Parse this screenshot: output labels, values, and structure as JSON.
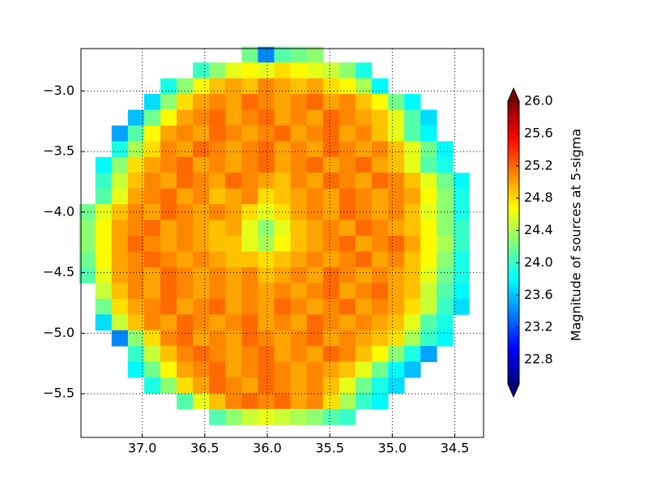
{
  "chart_data": {
    "type": "heatmap",
    "colorbar_label": "Magnitude of sources at 5-sigma",
    "colormap": "jet",
    "clim": [
      22.5,
      26.0
    ],
    "colorbar_extend": "both",
    "grid": true,
    "xlim": [
      37.49,
      34.27
    ],
    "ylim": [
      -5.86,
      -2.65
    ],
    "xticks": [
      {
        "value": 37,
        "label": "37.0"
      },
      {
        "value": 36.5,
        "label": "36.5"
      },
      {
        "value": 36,
        "label": "36.0"
      },
      {
        "value": 35.5,
        "label": "35.5"
      },
      {
        "value": 35,
        "label": "35.0"
      },
      {
        "value": 34.5,
        "label": "34.5"
      }
    ],
    "yticks": [
      {
        "value": -3,
        "label": "−3.0"
      },
      {
        "value": -3.5,
        "label": "−3.5"
      },
      {
        "value": -4,
        "label": "−4.0"
      },
      {
        "value": -4.5,
        "label": "−4.5"
      },
      {
        "value": -5,
        "label": "−5.0"
      },
      {
        "value": -5.5,
        "label": "−5.5"
      }
    ],
    "colorbar_ticks": [
      22.8,
      23.2,
      23.6,
      {
        "value": 24,
        "label": "24.0"
      },
      24.4,
      24.8,
      25.2,
      25.6,
      {
        "value": 26,
        "label": "26.0"
      }
    ],
    "x": [
      37.44,
      37.31,
      37.18,
      37.05,
      36.92,
      36.79,
      36.66,
      36.53,
      36.4,
      36.27,
      36.14,
      36.01,
      35.88,
      35.75,
      35.62,
      35.49,
      35.36,
      35.23,
      35.1,
      34.97,
      34.84,
      34.71,
      34.58,
      34.45
    ],
    "y": [
      -2.7,
      -2.83,
      -2.96,
      -3.09,
      -3.22,
      -3.35,
      -3.48,
      -3.61,
      -3.74,
      -3.87,
      -4.0,
      -4.13,
      -4.26,
      -4.39,
      -4.52,
      -4.65,
      -4.78,
      -4.91,
      -5.04,
      -5.17,
      -5.3,
      -5.43,
      -5.56,
      -5.69
    ],
    "z": [
      [
        null,
        null,
        null,
        null,
        null,
        null,
        null,
        null,
        null,
        null,
        24.2,
        23.4,
        24.1,
        24.2,
        24.3,
        null,
        null,
        null,
        null,
        null,
        null,
        null,
        null,
        null
      ],
      [
        null,
        null,
        null,
        null,
        null,
        null,
        null,
        24.0,
        24.3,
        24.6,
        24.7,
        24.6,
        24.8,
        24.7,
        24.6,
        24.5,
        24.3,
        23.9,
        null,
        null,
        null,
        null,
        null,
        null
      ],
      [
        null,
        null,
        null,
        null,
        null,
        23.9,
        24.3,
        24.7,
        24.9,
        25.0,
        24.9,
        25.1,
        25.0,
        24.9,
        25.0,
        24.8,
        24.7,
        24.4,
        23.8,
        null,
        null,
        null,
        null,
        null
      ],
      [
        null,
        null,
        null,
        null,
        23.7,
        24.3,
        24.8,
        25.0,
        25.1,
        25.0,
        25.2,
        25.1,
        25.0,
        25.1,
        25.2,
        25.0,
        25.1,
        24.9,
        24.7,
        24.2,
        23.8,
        null,
        null,
        null
      ],
      [
        null,
        null,
        null,
        23.6,
        24.2,
        24.7,
        25.0,
        25.1,
        25.2,
        25.0,
        25.1,
        25.2,
        25.0,
        25.1,
        25.0,
        25.2,
        25.1,
        25.0,
        24.9,
        24.6,
        24.1,
        23.7,
        null,
        null
      ],
      [
        null,
        null,
        23.5,
        24.1,
        24.7,
        25.0,
        25.1,
        25.0,
        25.2,
        25.1,
        25.0,
        25.1,
        25.2,
        25.0,
        25.1,
        25.2,
        25.0,
        25.1,
        24.9,
        24.6,
        24.1,
        23.8,
        null,
        null
      ],
      [
        null,
        null,
        23.9,
        24.4,
        24.8,
        25.1,
        25.0,
        25.2,
        25.1,
        25.0,
        25.1,
        25.2,
        25.0,
        25.1,
        25.0,
        25.2,
        25.1,
        25.0,
        25.1,
        24.9,
        24.6,
        24.2,
        23.8,
        null
      ],
      [
        null,
        23.8,
        24.3,
        24.8,
        25.0,
        25.1,
        25.2,
        25.0,
        25.1,
        25.0,
        25.1,
        25.2,
        25.0,
        25.1,
        25.2,
        25.0,
        25.1,
        25.2,
        25.0,
        24.9,
        24.6,
        24.1,
        23.9,
        null
      ],
      [
        null,
        24.0,
        24.5,
        24.9,
        25.1,
        25.0,
        25.2,
        25.1,
        25.0,
        25.2,
        25.1,
        25.0,
        24.9,
        25.1,
        25.0,
        25.2,
        25.1,
        25.0,
        25.2,
        25.1,
        24.9,
        24.6,
        24.2,
        23.8
      ],
      [
        null,
        24.1,
        24.6,
        25.0,
        25.1,
        25.2,
        25.0,
        25.1,
        24.9,
        25.0,
        25.1,
        24.8,
        24.9,
        25.0,
        25.1,
        25.0,
        25.2,
        25.1,
        25.0,
        25.1,
        25.0,
        24.7,
        24.3,
        23.9
      ],
      [
        24.2,
        24.6,
        24.9,
        25.1,
        25.0,
        25.2,
        25.1,
        25.0,
        25.1,
        25.0,
        24.8,
        24.6,
        24.8,
        25.0,
        25.1,
        25.0,
        25.2,
        25.1,
        25.0,
        25.1,
        24.9,
        24.6,
        24.3,
        23.9
      ],
      [
        24.3,
        24.7,
        25.0,
        25.1,
        25.2,
        25.0,
        25.1,
        25.0,
        24.9,
        25.0,
        24.6,
        24.3,
        24.6,
        24.9,
        25.0,
        25.1,
        25.0,
        25.2,
        25.1,
        25.0,
        24.9,
        24.7,
        24.3,
        24.0
      ],
      [
        24.3,
        24.7,
        25.0,
        25.2,
        25.1,
        25.0,
        25.1,
        25.0,
        24.9,
        24.9,
        24.6,
        24.4,
        24.7,
        24.9,
        25.0,
        25.1,
        25.2,
        25.0,
        25.1,
        25.2,
        25.0,
        24.7,
        24.4,
        24.0
      ],
      [
        24.2,
        24.7,
        25.0,
        25.1,
        25.2,
        25.1,
        25.0,
        25.1,
        25.0,
        24.9,
        24.9,
        24.8,
        24.9,
        25.0,
        25.1,
        25.0,
        25.1,
        25.2,
        25.0,
        25.1,
        24.9,
        24.7,
        24.3,
        23.9
      ],
      [
        24.1,
        24.6,
        25.0,
        25.1,
        25.0,
        25.2,
        25.1,
        25.0,
        25.1,
        25.0,
        25.1,
        24.9,
        25.0,
        25.1,
        25.0,
        25.2,
        25.1,
        25.0,
        25.1,
        25.0,
        24.9,
        24.6,
        24.2,
        23.9
      ],
      [
        null,
        24.5,
        24.9,
        25.1,
        25.0,
        25.2,
        25.1,
        25.0,
        25.1,
        25.0,
        25.1,
        25.0,
        25.1,
        25.0,
        25.1,
        25.2,
        25.0,
        25.1,
        25.2,
        25.0,
        24.9,
        24.5,
        24.1,
        23.8
      ],
      [
        null,
        24.2,
        24.8,
        25.0,
        25.1,
        25.2,
        25.0,
        25.1,
        25.2,
        25.0,
        25.1,
        25.0,
        25.2,
        25.1,
        25.0,
        25.1,
        25.2,
        25.0,
        25.1,
        25.0,
        24.8,
        24.5,
        24.0,
        23.7
      ],
      [
        null,
        23.7,
        24.5,
        24.9,
        25.1,
        25.0,
        25.2,
        25.1,
        25.0,
        25.1,
        25.2,
        25.0,
        25.1,
        25.0,
        25.2,
        25.1,
        25.0,
        25.1,
        25.0,
        24.9,
        24.6,
        24.1,
        23.9,
        null
      ],
      [
        null,
        null,
        23.4,
        24.3,
        24.8,
        25.1,
        25.2,
        25.0,
        25.1,
        25.0,
        25.2,
        25.1,
        25.0,
        25.1,
        25.2,
        25.0,
        25.1,
        25.0,
        24.9,
        24.8,
        24.4,
        24.0,
        23.8,
        null
      ],
      [
        null,
        null,
        null,
        24.0,
        24.5,
        24.9,
        25.1,
        25.2,
        25.1,
        25.0,
        25.1,
        25.2,
        25.0,
        25.1,
        25.0,
        25.2,
        25.1,
        24.9,
        24.7,
        24.3,
        23.9,
        23.5,
        null,
        null
      ],
      [
        null,
        null,
        null,
        23.8,
        24.2,
        24.7,
        25.0,
        25.1,
        25.2,
        25.0,
        25.1,
        25.2,
        25.1,
        25.0,
        25.1,
        25.0,
        24.9,
        24.6,
        24.2,
        23.8,
        23.6,
        null,
        null,
        null
      ],
      [
        null,
        null,
        null,
        null,
        23.9,
        24.3,
        24.8,
        25.0,
        25.2,
        25.1,
        25.0,
        25.2,
        25.1,
        25.0,
        25.1,
        24.9,
        24.6,
        24.2,
        23.9,
        23.7,
        null,
        null,
        null,
        null
      ],
      [
        null,
        null,
        null,
        null,
        null,
        null,
        24.1,
        24.6,
        24.9,
        25.1,
        25.2,
        25.1,
        25.2,
        25.0,
        25.1,
        24.8,
        24.4,
        24.0,
        23.8,
        null,
        null,
        null,
        null,
        null
      ],
      [
        null,
        null,
        null,
        null,
        null,
        null,
        null,
        null,
        24.1,
        24.3,
        24.5,
        24.6,
        24.5,
        24.4,
        24.3,
        24.1,
        24.0,
        null,
        null,
        null,
        null,
        null,
        null,
        null
      ]
    ]
  }
}
